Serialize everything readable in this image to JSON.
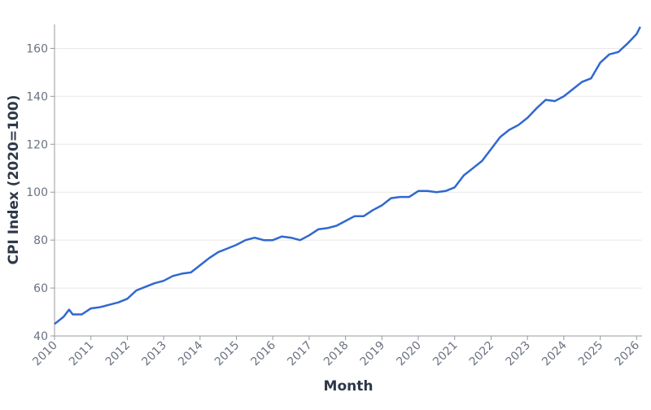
{
  "chart_data": {
    "type": "line",
    "x_label": "Month",
    "y_label": "CPI Index (2020=100)",
    "x": [
      2010,
      2010.25,
      2010.4,
      2010.5,
      2010.75,
      2011,
      2011.25,
      2011.5,
      2011.75,
      2012,
      2012.25,
      2012.5,
      2012.75,
      2013,
      2013.25,
      2013.5,
      2013.75,
      2014,
      2014.25,
      2014.5,
      2014.75,
      2015,
      2015.25,
      2015.5,
      2015.75,
      2016,
      2016.25,
      2016.5,
      2016.75,
      2017,
      2017.25,
      2017.5,
      2017.75,
      2018,
      2018.25,
      2018.5,
      2018.75,
      2019,
      2019.25,
      2019.5,
      2019.75,
      2020,
      2020.25,
      2020.5,
      2020.75,
      2021,
      2021.25,
      2021.5,
      2021.75,
      2022,
      2022.25,
      2022.5,
      2022.75,
      2023,
      2023.25,
      2023.5,
      2023.75,
      2024,
      2024.25,
      2024.5,
      2024.75,
      2025,
      2025.25,
      2025.5,
      2025.75,
      2026,
      2026.1
    ],
    "series": [
      {
        "color": "#3068d0",
        "values": [
          45,
          48,
          51,
          49,
          49,
          51.5,
          52,
          53,
          54,
          55.5,
          59,
          60.5,
          62,
          63,
          65,
          66,
          66.5,
          69.5,
          72.5,
          75,
          76.5,
          78,
          80,
          81,
          80,
          80,
          81.5,
          81,
          80,
          82,
          84.5,
          85,
          86,
          88,
          90,
          90,
          92.5,
          94.5,
          97.5,
          98,
          98,
          100.5,
          100.5,
          100,
          100.5,
          102,
          107,
          110,
          113,
          118,
          123,
          126,
          128,
          131,
          135,
          138.5,
          138,
          140,
          143,
          146,
          147.5,
          154,
          157.5,
          158.5,
          162,
          166,
          169
        ]
      }
    ],
    "xlim": [
      2010,
      2026.15
    ],
    "xticks": [
      2010,
      2011,
      2012,
      2013,
      2014,
      2015,
      2016,
      2017,
      2018,
      2019,
      2020,
      2021,
      2022,
      2023,
      2024,
      2025,
      2026
    ],
    "ylim": [
      40,
      170
    ],
    "yticks": [
      40,
      60,
      80,
      100,
      120,
      140,
      160
    ],
    "grid": true
  }
}
